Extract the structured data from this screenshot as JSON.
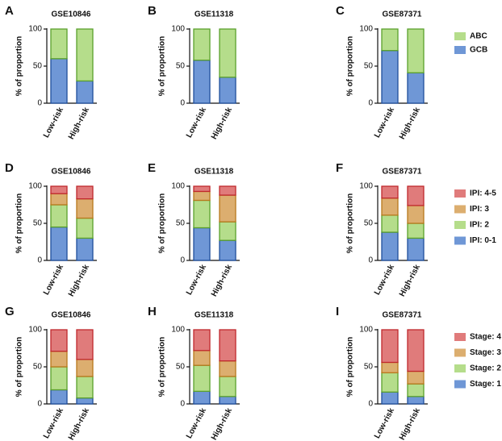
{
  "chart_data": [
    {
      "type": "bar",
      "stacked": true,
      "panel": "A",
      "title": "GSE10846",
      "y_label": "% of proportion",
      "categories": [
        "Low-risk",
        "High-risk"
      ],
      "ylim": [
        0,
        100
      ],
      "yticks": [
        0,
        50,
        100
      ],
      "series": [
        {
          "color": "#6f97d6",
          "values": [
            60,
            30
          ]
        },
        {
          "color": "#b5dd8b",
          "values": [
            40,
            70
          ]
        }
      ]
    },
    {
      "type": "bar",
      "stacked": true,
      "panel": "B",
      "title": "GSE11318",
      "y_label": "% of proportion",
      "categories": [
        "Low-risk",
        "High-risk"
      ],
      "ylim": [
        0,
        100
      ],
      "yticks": [
        0,
        50,
        100
      ],
      "series": [
        {
          "color": "#6f97d6",
          "values": [
            58,
            35
          ]
        },
        {
          "color": "#b5dd8b",
          "values": [
            42,
            65
          ]
        }
      ]
    },
    {
      "type": "bar",
      "stacked": true,
      "panel": "C",
      "title": "GSE87371",
      "y_label": "% of proportion",
      "categories": [
        "Low-risk",
        "High-risk"
      ],
      "ylim": [
        0,
        100
      ],
      "yticks": [
        0,
        50,
        100
      ],
      "legend": "right",
      "series": [
        {
          "name": "GCB",
          "color": "#6f97d6",
          "values": [
            71,
            41
          ]
        },
        {
          "name": "ABC",
          "color": "#b5dd8b",
          "values": [
            29,
            59
          ]
        }
      ]
    },
    {
      "type": "bar",
      "stacked": true,
      "panel": "D",
      "title": "GSE10846",
      "y_label": "% of proportion",
      "categories": [
        "Low-risk",
        "High-risk"
      ],
      "ylim": [
        0,
        100
      ],
      "yticks": [
        0,
        50,
        100
      ],
      "series": [
        {
          "color": "#6f97d6",
          "values": [
            45,
            30
          ]
        },
        {
          "color": "#b5dd8b",
          "values": [
            30,
            27
          ]
        },
        {
          "color": "#dcae6f",
          "values": [
            15,
            26
          ]
        },
        {
          "color": "#e07b7b",
          "values": [
            10,
            17
          ]
        }
      ]
    },
    {
      "type": "bar",
      "stacked": true,
      "panel": "E",
      "title": "GSE11318",
      "y_label": "% of proportion",
      "categories": [
        "Low-risk",
        "High-risk"
      ],
      "ylim": [
        0,
        100
      ],
      "yticks": [
        0,
        50,
        100
      ],
      "series": [
        {
          "color": "#6f97d6",
          "values": [
            44,
            27
          ]
        },
        {
          "color": "#b5dd8b",
          "values": [
            37,
            25
          ]
        },
        {
          "color": "#dcae6f",
          "values": [
            12,
            36
          ]
        },
        {
          "color": "#e07b7b",
          "values": [
            7,
            12
          ]
        }
      ]
    },
    {
      "type": "bar",
      "stacked": true,
      "panel": "F",
      "title": "GSE87371",
      "y_label": "% of proportion",
      "categories": [
        "Low-risk",
        "High-risk"
      ],
      "ylim": [
        0,
        100
      ],
      "yticks": [
        0,
        50,
        100
      ],
      "legend": "right",
      "series": [
        {
          "name": "IPI: 0-1",
          "color": "#6f97d6",
          "values": [
            38,
            30
          ]
        },
        {
          "name": "IPI: 2",
          "color": "#b5dd8b",
          "values": [
            23,
            20
          ]
        },
        {
          "name": "IPI: 3",
          "color": "#dcae6f",
          "values": [
            23,
            24
          ]
        },
        {
          "name": "IPI: 4-5",
          "color": "#e07b7b",
          "values": [
            16,
            26
          ]
        }
      ]
    },
    {
      "type": "bar",
      "stacked": true,
      "panel": "G",
      "title": "GSE10846",
      "y_label": "% of proportion",
      "categories": [
        "Low-risk",
        "High-risk"
      ],
      "ylim": [
        0,
        100
      ],
      "yticks": [
        0,
        50,
        100
      ],
      "series": [
        {
          "color": "#6f97d6",
          "values": [
            19,
            8
          ]
        },
        {
          "color": "#b5dd8b",
          "values": [
            31,
            29
          ]
        },
        {
          "color": "#dcae6f",
          "values": [
            21,
            23
          ]
        },
        {
          "color": "#e07b7b",
          "values": [
            29,
            40
          ]
        }
      ]
    },
    {
      "type": "bar",
      "stacked": true,
      "panel": "H",
      "title": "GSE11318",
      "y_label": "% of proportion",
      "categories": [
        "Low-risk",
        "High-risk"
      ],
      "ylim": [
        0,
        100
      ],
      "yticks": [
        0,
        50,
        100
      ],
      "series": [
        {
          "color": "#6f97d6",
          "values": [
            17,
            10
          ]
        },
        {
          "color": "#b5dd8b",
          "values": [
            35,
            27
          ]
        },
        {
          "color": "#dcae6f",
          "values": [
            20,
            21
          ]
        },
        {
          "color": "#e07b7b",
          "values": [
            28,
            42
          ]
        }
      ]
    },
    {
      "type": "bar",
      "stacked": true,
      "panel": "I",
      "title": "GSE87371",
      "y_label": "% of proportion",
      "categories": [
        "Low-risk",
        "High-risk"
      ],
      "ylim": [
        0,
        100
      ],
      "yticks": [
        0,
        50,
        100
      ],
      "legend": "right",
      "series": [
        {
          "name": "Stage: 1",
          "color": "#6f97d6",
          "values": [
            16,
            10
          ]
        },
        {
          "name": "Stage: 2",
          "color": "#b5dd8b",
          "values": [
            26,
            17
          ]
        },
        {
          "name": "Stage: 3",
          "color": "#dcae6f",
          "values": [
            14,
            17
          ]
        },
        {
          "name": "Stage: 4",
          "color": "#e07b7b",
          "values": [
            44,
            56
          ]
        }
      ]
    }
  ]
}
